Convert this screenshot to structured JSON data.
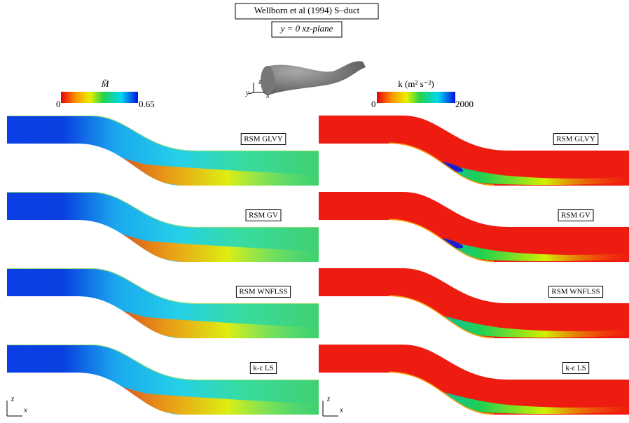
{
  "title_lines": [
    "Wellborn et al (1994) S–duct",
    "y = 0 xz-plane"
  ],
  "colorbars": [
    {
      "label": "M̆",
      "min": "0",
      "max": "0.65"
    },
    {
      "label": "k (m² s⁻²)",
      "min": "0",
      "max": "2000"
    }
  ],
  "panels": [
    "RSM GLVY",
    "RSM GV",
    "RSM WNFLSS",
    "k-ε LS"
  ],
  "axes": {
    "z": "z",
    "x": "x",
    "y": "y"
  }
}
